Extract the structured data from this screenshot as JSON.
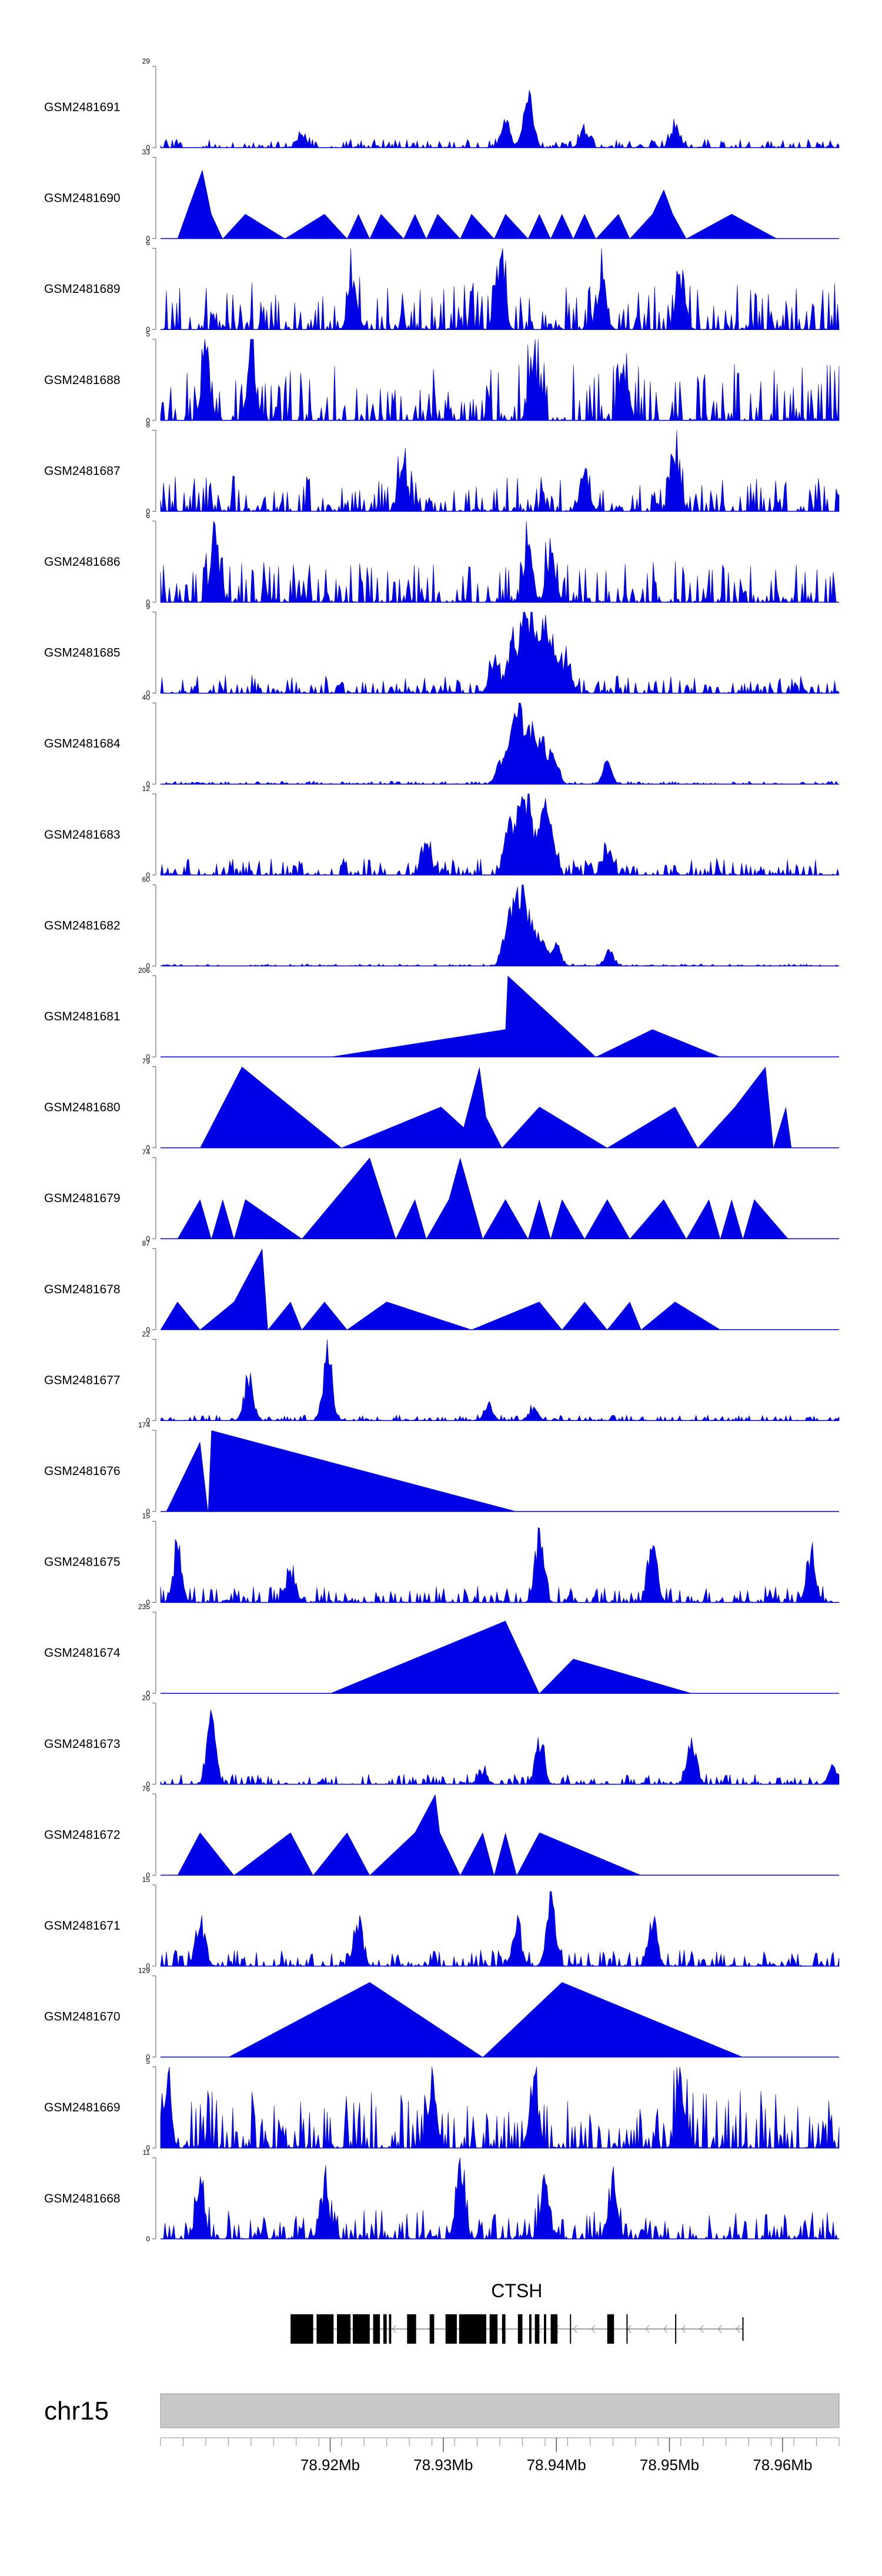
{
  "chart_data": {
    "type": "area",
    "title": "",
    "x_range": [
      78.905,
      78.965
    ],
    "x_units": "Mb",
    "fill_color": "#0000e6",
    "tracks": [
      {
        "name": "GSM2481691",
        "ymin": 0,
        "ymax": 29,
        "style": "dense",
        "peaks": [
          [
            78.9375,
            29
          ],
          [
            78.9355,
            12
          ],
          [
            78.9425,
            7
          ],
          [
            78.9505,
            10
          ],
          [
            78.9175,
            6
          ]
        ],
        "noise": 3
      },
      {
        "name": "GSM2481690",
        "ymin": 0,
        "ymax": 33,
        "style": "sparse",
        "points": [
          [
            78.9065,
            0
          ],
          [
            78.9075,
            13
          ],
          [
            78.9087,
            28
          ],
          [
            78.9095,
            10
          ],
          [
            78.9105,
            0
          ],
          [
            78.9125,
            10
          ],
          [
            78.916,
            0
          ],
          [
            78.9195,
            10
          ],
          [
            78.9215,
            0
          ],
          [
            78.9225,
            10
          ],
          [
            78.9235,
            0
          ],
          [
            78.9245,
            10
          ],
          [
            78.9265,
            0
          ],
          [
            78.9275,
            10
          ],
          [
            78.9285,
            0
          ],
          [
            78.9295,
            10
          ],
          [
            78.9315,
            0
          ],
          [
            78.9325,
            10
          ],
          [
            78.9345,
            0
          ],
          [
            78.9355,
            10
          ],
          [
            78.9375,
            0
          ],
          [
            78.9385,
            10
          ],
          [
            78.9395,
            0
          ],
          [
            78.9405,
            10
          ],
          [
            78.9415,
            0
          ],
          [
            78.9425,
            10
          ],
          [
            78.9435,
            0
          ],
          [
            78.9455,
            10
          ],
          [
            78.9465,
            0
          ],
          [
            78.9485,
            10
          ],
          [
            78.9495,
            20
          ],
          [
            78.9503,
            10
          ],
          [
            78.9515,
            0
          ],
          [
            78.9555,
            10
          ],
          [
            78.9595,
            0
          ]
        ]
      },
      {
        "name": "GSM2481689",
        "ymin": 0,
        "ymax": 6,
        "style": "dense",
        "peaks": [
          [
            78.935,
            6
          ],
          [
            78.951,
            5
          ],
          [
            78.922,
            5
          ],
          [
            78.944,
            5
          ]
        ],
        "noise": 3.5
      },
      {
        "name": "GSM2481688",
        "ymin": 0,
        "ymax": 5,
        "style": "dense",
        "peaks": [
          [
            78.909,
            5
          ],
          [
            78.938,
            5
          ],
          [
            78.913,
            4
          ],
          [
            78.946,
            4
          ]
        ],
        "noise": 3.5
      },
      {
        "name": "GSM2481687",
        "ymin": 0,
        "ymax": 8,
        "style": "dense",
        "peaks": [
          [
            78.9505,
            8
          ],
          [
            78.9425,
            5
          ],
          [
            78.9265,
            5
          ]
        ],
        "noise": 3.5
      },
      {
        "name": "GSM2481686",
        "ymin": 0,
        "ymax": 6,
        "style": "dense",
        "peaks": [
          [
            78.9098,
            6
          ],
          [
            78.9375,
            5
          ],
          [
            78.9395,
            4
          ]
        ],
        "noise": 3
      },
      {
        "name": "GSM2481685",
        "ymin": 0,
        "ymax": 9,
        "style": "dense",
        "peaks": [
          [
            78.936,
            6
          ],
          [
            78.937,
            8
          ],
          [
            78.9378,
            9
          ],
          [
            78.9388,
            8
          ],
          [
            78.9398,
            6
          ],
          [
            78.9345,
            5
          ],
          [
            78.941,
            4
          ]
        ],
        "noise": 2
      },
      {
        "name": "GSM2481684",
        "ymin": 0,
        "ymax": 40,
        "style": "dense",
        "peaks": [
          [
            78.935,
            12
          ],
          [
            78.936,
            34
          ],
          [
            78.9368,
            40
          ],
          [
            78.9378,
            30
          ],
          [
            78.9388,
            25
          ],
          [
            78.9398,
            16
          ],
          [
            78.9445,
            12
          ]
        ],
        "noise": 1.5
      },
      {
        "name": "GSM2481683",
        "ymin": 0,
        "ymax": 12,
        "style": "dense",
        "peaks": [
          [
            78.9357,
            9
          ],
          [
            78.9367,
            11
          ],
          [
            78.9375,
            12
          ],
          [
            78.9387,
            10
          ],
          [
            78.9395,
            8
          ],
          [
            78.9445,
            5
          ],
          [
            78.9285,
            6
          ]
        ],
        "noise": 2.5
      },
      {
        "name": "GSM2481682",
        "ymin": 0,
        "ymax": 60,
        "style": "dense",
        "peaks": [
          [
            78.9355,
            25
          ],
          [
            78.9362,
            52
          ],
          [
            78.937,
            58
          ],
          [
            78.9378,
            35
          ],
          [
            78.9388,
            25
          ],
          [
            78.94,
            18
          ],
          [
            78.9447,
            12
          ]
        ],
        "noise": 1.5
      },
      {
        "name": "GSM2481681",
        "ymin": 0,
        "ymax": 206,
        "style": "sparse",
        "points": [
          [
            78.92,
            0
          ],
          [
            78.9355,
            70
          ],
          [
            78.9357,
            206
          ],
          [
            78.9435,
            0
          ],
          [
            78.9485,
            70
          ],
          [
            78.9545,
            0
          ]
        ]
      },
      {
        "name": "GSM2481680",
        "ymin": 0,
        "ymax": 79,
        "style": "sparse",
        "points": [
          [
            78.9085,
            0
          ],
          [
            78.9122,
            79
          ],
          [
            78.921,
            0
          ],
          [
            78.9298,
            40
          ],
          [
            78.9318,
            20
          ],
          [
            78.9332,
            79
          ],
          [
            78.9338,
            30
          ],
          [
            78.9352,
            0
          ],
          [
            78.9385,
            40
          ],
          [
            78.9445,
            0
          ],
          [
            78.9505,
            40
          ],
          [
            78.9525,
            0
          ],
          [
            78.9558,
            40
          ],
          [
            78.9585,
            79
          ],
          [
            78.9592,
            0
          ],
          [
            78.9603,
            40
          ],
          [
            78.9608,
            0
          ]
        ]
      },
      {
        "name": "GSM2481679",
        "ymin": 0,
        "ymax": 74,
        "style": "sparse",
        "points": [
          [
            78.9065,
            0
          ],
          [
            78.9085,
            36
          ],
          [
            78.9095,
            0
          ],
          [
            78.9105,
            36
          ],
          [
            78.9115,
            0
          ],
          [
            78.9125,
            36
          ],
          [
            78.9175,
            0
          ],
          [
            78.9235,
            74
          ],
          [
            78.9258,
            0
          ],
          [
            78.9275,
            36
          ],
          [
            78.9285,
            0
          ],
          [
            78.9305,
            36
          ],
          [
            78.9315,
            74
          ],
          [
            78.9335,
            0
          ],
          [
            78.9355,
            36
          ],
          [
            78.9375,
            0
          ],
          [
            78.9385,
            36
          ],
          [
            78.9395,
            0
          ],
          [
            78.9405,
            36
          ],
          [
            78.9425,
            0
          ],
          [
            78.9445,
            36
          ],
          [
            78.9465,
            0
          ],
          [
            78.9495,
            36
          ],
          [
            78.9515,
            0
          ],
          [
            78.9535,
            36
          ],
          [
            78.9545,
            0
          ],
          [
            78.9555,
            36
          ],
          [
            78.9565,
            0
          ],
          [
            78.9575,
            36
          ],
          [
            78.9605,
            0
          ]
        ]
      },
      {
        "name": "GSM2481678",
        "ymin": 0,
        "ymax": 87,
        "style": "sparse",
        "points": [
          [
            78.905,
            0
          ],
          [
            78.9065,
            30
          ],
          [
            78.9085,
            0
          ],
          [
            78.9115,
            30
          ],
          [
            78.914,
            87
          ],
          [
            78.9145,
            0
          ],
          [
            78.9165,
            30
          ],
          [
            78.9175,
            0
          ],
          [
            78.9195,
            30
          ],
          [
            78.9215,
            0
          ],
          [
            78.925,
            30
          ],
          [
            78.9325,
            0
          ],
          [
            78.9385,
            30
          ],
          [
            78.9405,
            0
          ],
          [
            78.9425,
            30
          ],
          [
            78.9445,
            0
          ],
          [
            78.9465,
            30
          ],
          [
            78.9475,
            0
          ],
          [
            78.9505,
            30
          ],
          [
            78.9545,
            0
          ]
        ]
      },
      {
        "name": "GSM2481677",
        "ymin": 0,
        "ymax": 22,
        "style": "dense",
        "peaks": [
          [
            78.9128,
            15
          ],
          [
            78.9198,
            22
          ],
          [
            78.938,
            4
          ],
          [
            78.934,
            5
          ]
        ],
        "noise": 1.5
      },
      {
        "name": "GSM2481676",
        "ymin": 0,
        "ymax": 174,
        "style": "sparse",
        "points": [
          [
            78.9055,
            0
          ],
          [
            78.9085,
            150
          ],
          [
            78.9092,
            0
          ],
          [
            78.9095,
            174
          ],
          [
            78.9365,
            0
          ]
        ]
      },
      {
        "name": "GSM2481675",
        "ymin": 0,
        "ymax": 15,
        "style": "dense",
        "peaks": [
          [
            78.9385,
            15
          ],
          [
            78.9165,
            8
          ],
          [
            78.9485,
            13
          ],
          [
            78.9065,
            11
          ],
          [
            78.9625,
            11
          ]
        ],
        "noise": 3
      },
      {
        "name": "GSM2481674",
        "ymin": 0,
        "ymax": 235,
        "style": "sparse",
        "points": [
          [
            78.92,
            0
          ],
          [
            78.9355,
            210
          ],
          [
            78.9385,
            0
          ],
          [
            78.9415,
            100
          ],
          [
            78.952,
            0
          ]
        ]
      },
      {
        "name": "GSM2481673",
        "ymin": 0,
        "ymax": 20,
        "style": "dense",
        "peaks": [
          [
            78.9095,
            20
          ],
          [
            78.9385,
            13
          ],
          [
            78.952,
            13
          ],
          [
            78.9645,
            6
          ],
          [
            78.9335,
            4
          ]
        ],
        "noise": 2.5
      },
      {
        "name": "GSM2481672",
        "ymin": 0,
        "ymax": 76,
        "style": "sparse",
        "points": [
          [
            78.9065,
            0
          ],
          [
            78.9085,
            40
          ],
          [
            78.9115,
            0
          ],
          [
            78.9165,
            40
          ],
          [
            78.9185,
            0
          ],
          [
            78.9215,
            40
          ],
          [
            78.9235,
            0
          ],
          [
            78.9275,
            40
          ],
          [
            78.9293,
            76
          ],
          [
            78.9297,
            40
          ],
          [
            78.9315,
            0
          ],
          [
            78.9335,
            40
          ],
          [
            78.9345,
            0
          ],
          [
            78.9355,
            40
          ],
          [
            78.9365,
            0
          ],
          [
            78.9385,
            40
          ],
          [
            78.9475,
            0
          ]
        ]
      },
      {
        "name": "GSM2481671",
        "ymin": 0,
        "ymax": 15,
        "style": "dense",
        "peaks": [
          [
            78.9395,
            15
          ],
          [
            78.9085,
            11
          ],
          [
            78.9225,
            10
          ],
          [
            78.9485,
            11
          ],
          [
            78.9365,
            9
          ]
        ],
        "noise": 3
      },
      {
        "name": "GSM2481670",
        "ymin": 0,
        "ymax": 129,
        "style": "sparse",
        "points": [
          [
            78.911,
            0
          ],
          [
            78.9235,
            119
          ],
          [
            78.9335,
            0
          ],
          [
            78.9405,
            119
          ],
          [
            78.9565,
            0
          ]
        ]
      },
      {
        "name": "GSM2481669",
        "ymin": 0,
        "ymax": 5,
        "style": "dense",
        "peaks": [
          [
            78.9055,
            5
          ],
          [
            78.938,
            5
          ],
          [
            78.951,
            5
          ],
          [
            78.929,
            4
          ]
        ],
        "noise": 3.6
      },
      {
        "name": "GSM2481668",
        "ymin": 0,
        "ymax": 11,
        "style": "dense",
        "peaks": [
          [
            78.9315,
            11
          ],
          [
            78.9085,
            8
          ],
          [
            78.9195,
            8
          ],
          [
            78.939,
            8
          ],
          [
            78.945,
            8
          ]
        ],
        "noise": 4
      }
    ],
    "gene": {
      "name": "CTSH",
      "strand": "-",
      "start": 78.9165,
      "end": 78.9565,
      "exons": [
        [
          78.9165,
          78.9185
        ],
        [
          78.9188,
          78.9203
        ],
        [
          78.9206,
          78.9218
        ],
        [
          78.922,
          78.9235
        ],
        [
          78.9238,
          78.9244
        ],
        [
          78.9247,
          78.925
        ],
        [
          78.9252,
          78.9254
        ],
        [
          78.9268,
          78.9276
        ],
        [
          78.9288,
          78.9292
        ],
        [
          78.9302,
          78.9312
        ],
        [
          78.9314,
          78.9338
        ],
        [
          78.9341,
          78.9348
        ],
        [
          78.9352,
          78.9355
        ],
        [
          78.9366,
          78.937
        ],
        [
          78.9376,
          78.9378
        ],
        [
          78.9381,
          78.9385
        ],
        [
          78.9389,
          78.9391
        ],
        [
          78.9395,
          78.9401
        ],
        [
          78.9412,
          78.9413
        ],
        [
          78.9445,
          78.9451
        ],
        [
          78.9462,
          78.9463
        ],
        [
          78.9505,
          78.9506
        ]
      ],
      "gene_color": "#000000"
    },
    "axis": {
      "chromosome": "chr15",
      "ticks": [
        78.92,
        78.93,
        78.94,
        78.95,
        78.96
      ],
      "tick_labels": [
        "78.92Mb",
        "78.93Mb",
        "78.94Mb",
        "78.95Mb",
        "78.96Mb"
      ],
      "minor_step": 0.002,
      "band_color": "#c8c8c8"
    }
  }
}
